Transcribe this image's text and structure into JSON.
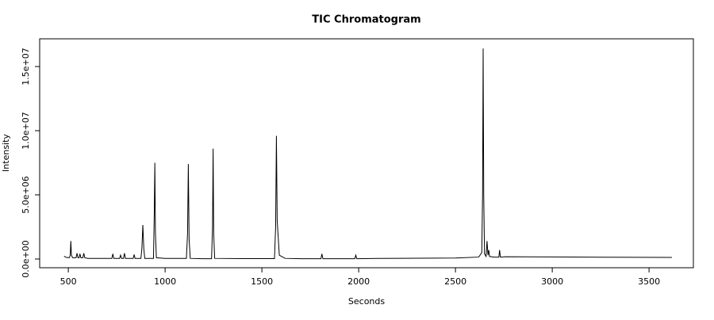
{
  "chart_data": {
    "type": "line",
    "title": "TIC Chromatogram",
    "x_label": "Seconds",
    "y_label": "Intensity",
    "color": "#000000",
    "xlim": [
      352,
      3729
    ],
    "ylim": [
      -679000,
      17160000
    ],
    "xticks": [
      500,
      1000,
      1500,
      2000,
      2500,
      3000,
      3500
    ],
    "yticks": [
      {
        "value": 0,
        "label": "0.0e+00"
      },
      {
        "value": 5000000,
        "label": "5.0e+06"
      },
      {
        "value": 10000000,
        "label": "1.0e+07"
      },
      {
        "value": 15000000,
        "label": "1.5e+07"
      }
    ],
    "x": [
      478,
      490,
      505,
      510,
      513,
      516,
      522,
      540,
      545,
      550,
      556,
      560,
      565,
      575,
      580,
      585,
      600,
      650,
      725,
      730,
      735,
      765,
      770,
      775,
      785,
      790,
      795,
      835,
      840,
      845,
      875,
      880,
      885,
      890,
      895,
      940,
      944,
      947,
      950,
      955,
      1000,
      1110,
      1116,
      1120,
      1124,
      1130,
      1200,
      1240,
      1245,
      1248,
      1251,
      1256,
      1400,
      1565,
      1571,
      1575,
      1579,
      1590,
      1620,
      1700,
      1805,
      1810,
      1815,
      1980,
      1985,
      1990,
      2100,
      2300,
      2500,
      2620,
      2636,
      2640,
      2643,
      2646,
      2650,
      2658,
      2663,
      2668,
      2672,
      2676,
      2700,
      2724,
      2728,
      2732,
      2760,
      3000,
      3300,
      3618
    ],
    "values": [
      220000,
      120000,
      100000,
      300000,
      1400000,
      300000,
      100000,
      100000,
      450000,
      100000,
      100000,
      400000,
      100000,
      100000,
      450000,
      100000,
      50000,
      50000,
      50000,
      400000,
      50000,
      50000,
      300000,
      50000,
      50000,
      450000,
      50000,
      50000,
      350000,
      50000,
      50000,
      800000,
      2650000,
      800000,
      50000,
      50000,
      3500000,
      7500000,
      2000000,
      100000,
      50000,
      50000,
      2000000,
      7400000,
      1500000,
      50000,
      20000,
      20000,
      2500000,
      8600000,
      2000000,
      50000,
      30000,
      30000,
      2500000,
      9600000,
      3000000,
      300000,
      50000,
      20000,
      20000,
      400000,
      20000,
      20000,
      300000,
      20000,
      50000,
      60000,
      80000,
      150000,
      500000,
      5000000,
      16400000,
      5000000,
      400000,
      200000,
      1400000,
      300000,
      700000,
      200000,
      150000,
      150000,
      700000,
      150000,
      180000,
      160000,
      140000,
      120000
    ]
  }
}
